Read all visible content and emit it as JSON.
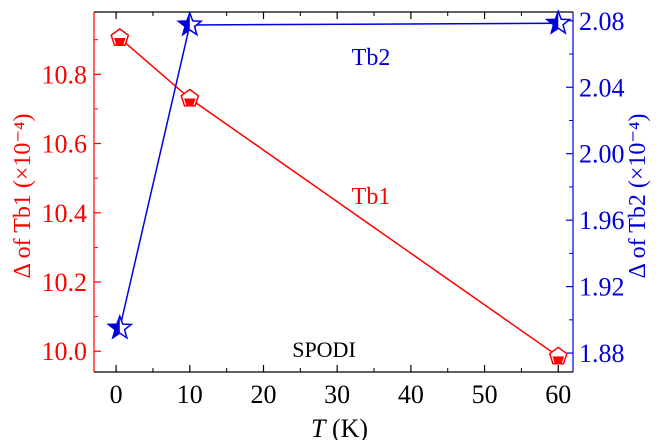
{
  "chart_data": {
    "type": "line",
    "x": [
      0.5,
      10,
      60
    ],
    "xlabel_var": "T",
    "xlabel_unit": " (K)",
    "xlim": [
      -3,
      62
    ],
    "xticks": [
      0,
      10,
      20,
      30,
      40,
      50,
      60
    ],
    "y_left": {
      "label": "Δ of Tb1 (×10⁻⁴)",
      "lim": [
        9.94,
        10.98
      ],
      "ticks": [
        "10.0",
        "10.2",
        "10.4",
        "10.6",
        "10.8"
      ],
      "color": "#ff0000"
    },
    "y_right": {
      "label": "Δ of Tb2 (×10⁻⁴)",
      "lim": [
        1.8686,
        2.0853
      ],
      "ticks": [
        "1.88",
        "1.92",
        "1.96",
        "2.00",
        "2.04",
        "2.08"
      ],
      "color": "#0000dd"
    },
    "series": [
      {
        "name": "Tb1",
        "axis": "left",
        "marker": "pentagon",
        "color": "#ff0000",
        "values": [
          10.905,
          10.73,
          9.985
        ]
      },
      {
        "name": "Tb2",
        "axis": "right",
        "marker": "star",
        "color": "#0000dd",
        "values": [
          1.895,
          2.0775,
          2.0785
        ]
      }
    ],
    "annotations": [
      {
        "text": "SPODI",
        "color": "#000000"
      }
    ],
    "grid": false
  }
}
